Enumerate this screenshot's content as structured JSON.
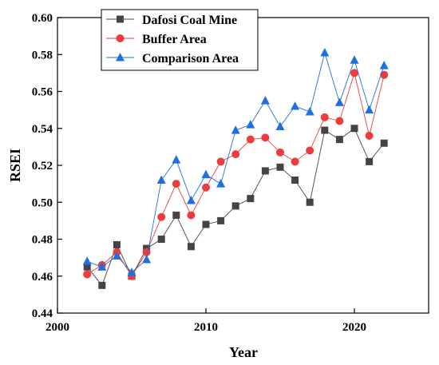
{
  "chart_data": {
    "type": "line",
    "title": "",
    "xlabel": "Year",
    "ylabel": "RSEI",
    "xlim": [
      2000,
      2025
    ],
    "ylim": [
      0.44,
      0.6
    ],
    "x_ticks": [
      2000,
      2010,
      2020
    ],
    "y_ticks": [
      0.44,
      0.46,
      0.48,
      0.5,
      0.52,
      0.54,
      0.56,
      0.58,
      0.6
    ],
    "x_tick_labels": [
      "2000",
      "2010",
      "2020"
    ],
    "y_tick_labels": [
      "0.44",
      "0.46",
      "0.48",
      "0.50",
      "0.52",
      "0.54",
      "0.56",
      "0.58",
      "0.60"
    ],
    "grid": false,
    "legend_position": "top-left",
    "x": [
      2002,
      2003,
      2004,
      2005,
      2006,
      2007,
      2008,
      2009,
      2010,
      2011,
      2012,
      2013,
      2014,
      2015,
      2016,
      2017,
      2018,
      2019,
      2020,
      2021,
      2022
    ],
    "series": [
      {
        "name": "Dafosi Coal Mine",
        "color": "#444444",
        "marker": "square",
        "values": [
          0.465,
          0.455,
          0.477,
          0.46,
          0.475,
          0.48,
          0.493,
          0.476,
          0.488,
          0.49,
          0.498,
          0.502,
          0.517,
          0.519,
          0.512,
          0.5,
          0.539,
          0.534,
          0.54,
          0.522,
          0.532
        ]
      },
      {
        "name": "Buffer Area",
        "color": "#ee3b3b",
        "marker": "circle",
        "values": [
          0.461,
          0.466,
          0.473,
          0.46,
          0.473,
          0.492,
          0.51,
          0.493,
          0.508,
          0.522,
          0.526,
          0.534,
          0.535,
          0.527,
          0.522,
          0.528,
          0.546,
          0.544,
          0.57,
          0.536,
          0.569
        ]
      },
      {
        "name": "Comparison Area",
        "color": "#1f6fe0",
        "marker": "triangle",
        "values": [
          0.468,
          0.465,
          0.471,
          0.462,
          0.469,
          0.512,
          0.523,
          0.501,
          0.515,
          0.51,
          0.539,
          0.542,
          0.555,
          0.541,
          0.552,
          0.549,
          0.581,
          0.554,
          0.577,
          0.55,
          0.574
        ]
      }
    ]
  }
}
